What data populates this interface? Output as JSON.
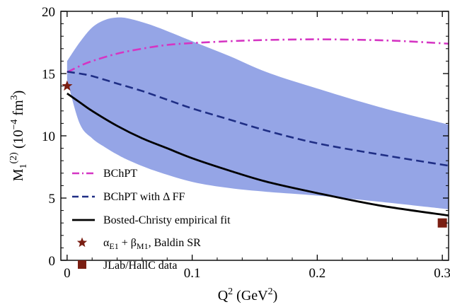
{
  "chart_data": {
    "type": "line",
    "x_axis": {
      "label_main": "Q",
      "label_sup": "2",
      "label_unit_open": " (GeV",
      "label_unit_sup": "2",
      "label_unit_close": ")",
      "range": [
        -0.005,
        0.305
      ],
      "ticks": [
        0,
        0.1,
        0.2,
        0.3
      ],
      "tick_labels": [
        "0",
        "0.1",
        "0.2",
        "0.3"
      ]
    },
    "y_axis": {
      "label_main": "M",
      "label_sub": "1",
      "label_sup": "(2)",
      "label_unit_open": " (10",
      "label_unit_sup1": "−4",
      "label_unit_mid": " fm",
      "label_unit_sup2": "3",
      "label_unit_close": ")",
      "range": [
        0,
        20
      ],
      "ticks": [
        0,
        5,
        10,
        15,
        20
      ],
      "tick_labels": [
        "0",
        "5",
        "10",
        "15",
        "20"
      ]
    },
    "band": {
      "color": "#95A5E6",
      "x": [
        0,
        0.01,
        0.02,
        0.03,
        0.04,
        0.05,
        0.07,
        0.1,
        0.13,
        0.16,
        0.2,
        0.25,
        0.305
      ],
      "upper": [
        16.0,
        17.5,
        18.7,
        19.3,
        19.5,
        19.4,
        18.8,
        17.6,
        16.4,
        15.1,
        13.8,
        12.3,
        10.9
      ],
      "lower": [
        14.5,
        11.0,
        9.8,
        9.1,
        8.5,
        8.0,
        7.2,
        6.3,
        5.8,
        5.5,
        5.2,
        4.7,
        4.1
      ]
    },
    "series": [
      {
        "name": "BChPT",
        "color": "#D535C3",
        "style": "dashdot",
        "x": [
          0,
          0.01,
          0.02,
          0.04,
          0.06,
          0.08,
          0.1,
          0.13,
          0.16,
          0.2,
          0.24,
          0.27,
          0.305
        ],
        "y": [
          15.1,
          15.6,
          16.0,
          16.6,
          17.0,
          17.3,
          17.45,
          17.6,
          17.7,
          17.75,
          17.7,
          17.6,
          17.4
        ]
      },
      {
        "name": "BChPT with Δ FF",
        "color": "#1F2E85",
        "style": "dashed",
        "x": [
          0,
          0.01,
          0.02,
          0.04,
          0.06,
          0.08,
          0.1,
          0.13,
          0.16,
          0.2,
          0.25,
          0.305
        ],
        "y": [
          15.15,
          15.0,
          14.8,
          14.2,
          13.6,
          12.9,
          12.2,
          11.3,
          10.4,
          9.4,
          8.5,
          7.6
        ]
      },
      {
        "name": "Bosted-Christy empirical fit",
        "color": "#000000",
        "style": "solid",
        "x": [
          0,
          0.01,
          0.02,
          0.04,
          0.06,
          0.08,
          0.1,
          0.13,
          0.16,
          0.2,
          0.25,
          0.305
        ],
        "y": [
          13.4,
          12.7,
          12.0,
          10.8,
          9.8,
          9.0,
          8.2,
          7.2,
          6.3,
          5.4,
          4.4,
          3.6
        ]
      }
    ],
    "points": [
      {
        "name": "αE1 + βM1, Baldin SR",
        "legend": {
          "main1": "α",
          "sub1": "E1",
          "mid": " + ",
          "main2": "β",
          "sub2": "M1",
          "tail": ", Baldin SR"
        },
        "marker": "star",
        "color": "#7A1E12",
        "x": 0,
        "y": 14.0
      },
      {
        "name": "JLab/HallC data",
        "marker": "square",
        "color": "#7A1E12",
        "x": 0.3,
        "y": 3.0
      }
    ],
    "legend_placement": "bottom-left",
    "grid": false
  }
}
